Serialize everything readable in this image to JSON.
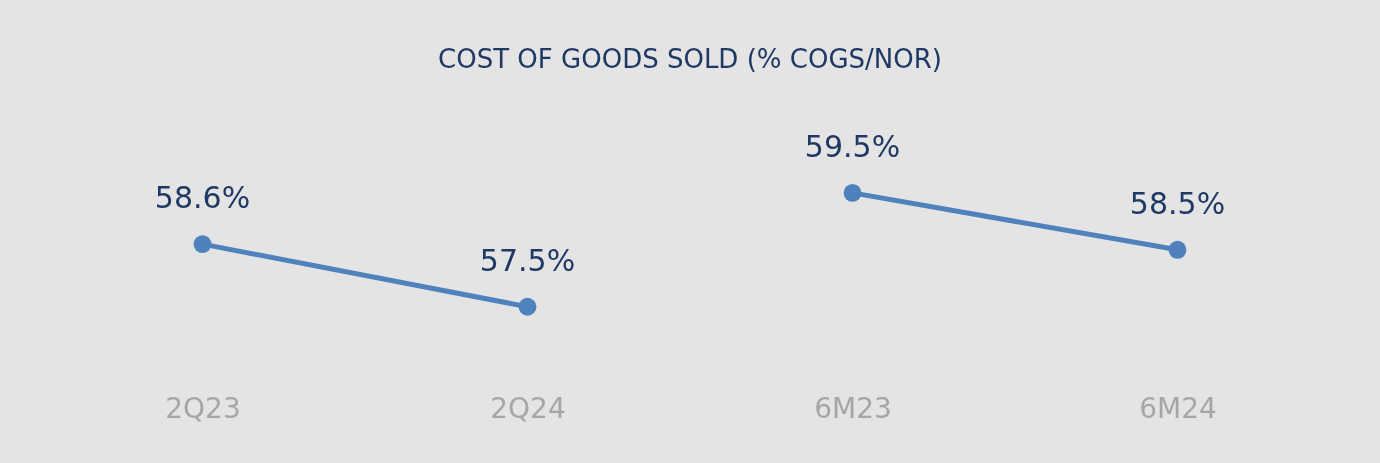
{
  "chart_data": {
    "type": "line",
    "title": "COST OF GOODS SOLD (% COGS/NOR)",
    "categories": [
      "2Q23",
      "2Q24",
      "6M23",
      "6M24"
    ],
    "series": [
      {
        "color": "#4f81bd",
        "values": [
          58.6,
          57.5,
          null,
          null
        ],
        "value_labels": [
          "58.6%",
          "57.5%",
          null,
          null
        ]
      },
      {
        "color": "#4f81bd",
        "values": [
          null,
          null,
          59.5,
          58.5
        ],
        "value_labels": [
          null,
          null,
          "59.5%",
          "58.5%"
        ]
      }
    ],
    "marker": "circle",
    "grid": false
  }
}
